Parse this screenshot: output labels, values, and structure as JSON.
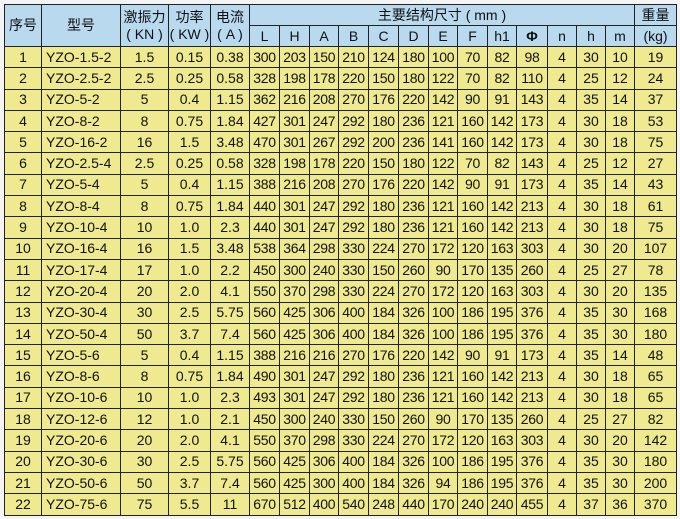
{
  "header": {
    "seq": "序号",
    "model": "型号",
    "force": "激振力",
    "force_unit": "( KN )",
    "power": "功率",
    "power_unit": "( KW )",
    "current": "电流",
    "current_unit": "( A )",
    "dims_group": "主要结构尺寸 ( mm )",
    "weight": "重量",
    "weight_unit": "(kg)",
    "dims": [
      "L",
      "H",
      "A",
      "B",
      "C",
      "D",
      "E",
      "F",
      "h1",
      "Φ",
      "n",
      "h",
      "m"
    ]
  },
  "colors": {
    "header_bg": "#b9d9ef",
    "row_bg": "#efe98f",
    "border": "#222222"
  },
  "rows": [
    [
      "1",
      "YZO-1.5-2",
      "1.5",
      "0.15",
      "0.38",
      "300",
      "203",
      "150",
      "210",
      "124",
      "180",
      "100",
      "70",
      "82",
      "98",
      "4",
      "30",
      "10",
      "19"
    ],
    [
      "2",
      "YZO-2.5-2",
      "2.5",
      "0.25",
      "0.58",
      "328",
      "198",
      "178",
      "220",
      "150",
      "180",
      "122",
      "70",
      "82",
      "110",
      "4",
      "25",
      "12",
      "24"
    ],
    [
      "3",
      "YZO-5-2",
      "5",
      "0.4",
      "1.15",
      "362",
      "216",
      "208",
      "270",
      "176",
      "220",
      "142",
      "90",
      "91",
      "143",
      "4",
      "35",
      "14",
      "37"
    ],
    [
      "4",
      "YZO-8-2",
      "8",
      "0.75",
      "1.84",
      "427",
      "301",
      "247",
      "292",
      "180",
      "236",
      "121",
      "160",
      "142",
      "173",
      "4",
      "30",
      "18",
      "53"
    ],
    [
      "5",
      "YZO-16-2",
      "16",
      "1.5",
      "3.48",
      "470",
      "301",
      "267",
      "292",
      "200",
      "236",
      "141",
      "160",
      "142",
      "173",
      "4",
      "30",
      "18",
      "75"
    ],
    [
      "6",
      "YZO-2.5-4",
      "2.5",
      "0.25",
      "0.58",
      "328",
      "198",
      "178",
      "220",
      "150",
      "180",
      "122",
      "70",
      "82",
      "143",
      "4",
      "25",
      "12",
      "27"
    ],
    [
      "7",
      "YZO-5-4",
      "5",
      "0.4",
      "1.15",
      "388",
      "216",
      "208",
      "270",
      "176",
      "220",
      "142",
      "90",
      "91",
      "173",
      "4",
      "35",
      "14",
      "43"
    ],
    [
      "8",
      "YZO-8-4",
      "8",
      "0.75",
      "1.84",
      "440",
      "301",
      "247",
      "292",
      "180",
      "236",
      "121",
      "160",
      "142",
      "213",
      "4",
      "30",
      "18",
      "61"
    ],
    [
      "9",
      "YZO-10-4",
      "10",
      "1.0",
      "2.3",
      "440",
      "301",
      "247",
      "292",
      "180",
      "236",
      "121",
      "160",
      "142",
      "213",
      "4",
      "30",
      "18",
      "75"
    ],
    [
      "10",
      "YZO-16-4",
      "16",
      "1.5",
      "3.48",
      "538",
      "364",
      "298",
      "330",
      "224",
      "270",
      "172",
      "120",
      "163",
      "303",
      "4",
      "30",
      "20",
      "107"
    ],
    [
      "11",
      "YZO-17-4",
      "17",
      "1.0",
      "2.2",
      "450",
      "300",
      "240",
      "330",
      "150",
      "260",
      "90",
      "170",
      "135",
      "260",
      "4",
      "25",
      "27",
      "78"
    ],
    [
      "12",
      "YZO-20-4",
      "20",
      "2.0",
      "4.1",
      "550",
      "370",
      "298",
      "330",
      "224",
      "270",
      "172",
      "120",
      "163",
      "303",
      "4",
      "30",
      "20",
      "135"
    ],
    [
      "13",
      "YZO-30-4",
      "30",
      "2.5",
      "5.75",
      "560",
      "425",
      "306",
      "400",
      "184",
      "326",
      "100",
      "186",
      "195",
      "376",
      "4",
      "35",
      "30",
      "168"
    ],
    [
      "14",
      "YZO-50-4",
      "50",
      "3.7",
      "7.4",
      "560",
      "425",
      "306",
      "400",
      "184",
      "326",
      "100",
      "186",
      "195",
      "376",
      "4",
      "35",
      "30",
      "180"
    ],
    [
      "15",
      "YZO-5-6",
      "5",
      "0.4",
      "1.15",
      "388",
      "216",
      "216",
      "270",
      "176",
      "220",
      "142",
      "90",
      "91",
      "173",
      "4",
      "35",
      "14",
      "48"
    ],
    [
      "16",
      "YZO-8-6",
      "8",
      "0.75",
      "1.84",
      "490",
      "301",
      "247",
      "292",
      "180",
      "236",
      "121",
      "160",
      "142",
      "213",
      "4",
      "30",
      "18",
      "65"
    ],
    [
      "17",
      "YZO-10-6",
      "10",
      "1.0",
      "2.3",
      "493",
      "301",
      "247",
      "292",
      "180",
      "236",
      "121",
      "160",
      "142",
      "213",
      "4",
      "30",
      "18",
      "65"
    ],
    [
      "18",
      "YZO-12-6",
      "12",
      "1.0",
      "2.1",
      "450",
      "300",
      "240",
      "330",
      "150",
      "260",
      "90",
      "170",
      "135",
      "260",
      "4",
      "25",
      "27",
      "82"
    ],
    [
      "19",
      "YZO-20-6",
      "20",
      "2.0",
      "4.1",
      "550",
      "370",
      "298",
      "330",
      "224",
      "270",
      "172",
      "120",
      "163",
      "303",
      "4",
      "30",
      "20",
      "142"
    ],
    [
      "20",
      "YZO-30-6",
      "30",
      "2.5",
      "5.75",
      "560",
      "425",
      "306",
      "400",
      "184",
      "326",
      "100",
      "186",
      "195",
      "376",
      "4",
      "35",
      "30",
      "180"
    ],
    [
      "21",
      "YZO-50-6",
      "50",
      "3.7",
      "7.4",
      "560",
      "425",
      "300",
      "400",
      "184",
      "326",
      "94",
      "186",
      "195",
      "376",
      "4",
      "35",
      "30",
      "200"
    ],
    [
      "22",
      "YZO-75-6",
      "75",
      "5.5",
      "11",
      "670",
      "512",
      "400",
      "540",
      "248",
      "440",
      "170",
      "240",
      "240",
      "455",
      "4",
      "37",
      "36",
      "370"
    ]
  ]
}
